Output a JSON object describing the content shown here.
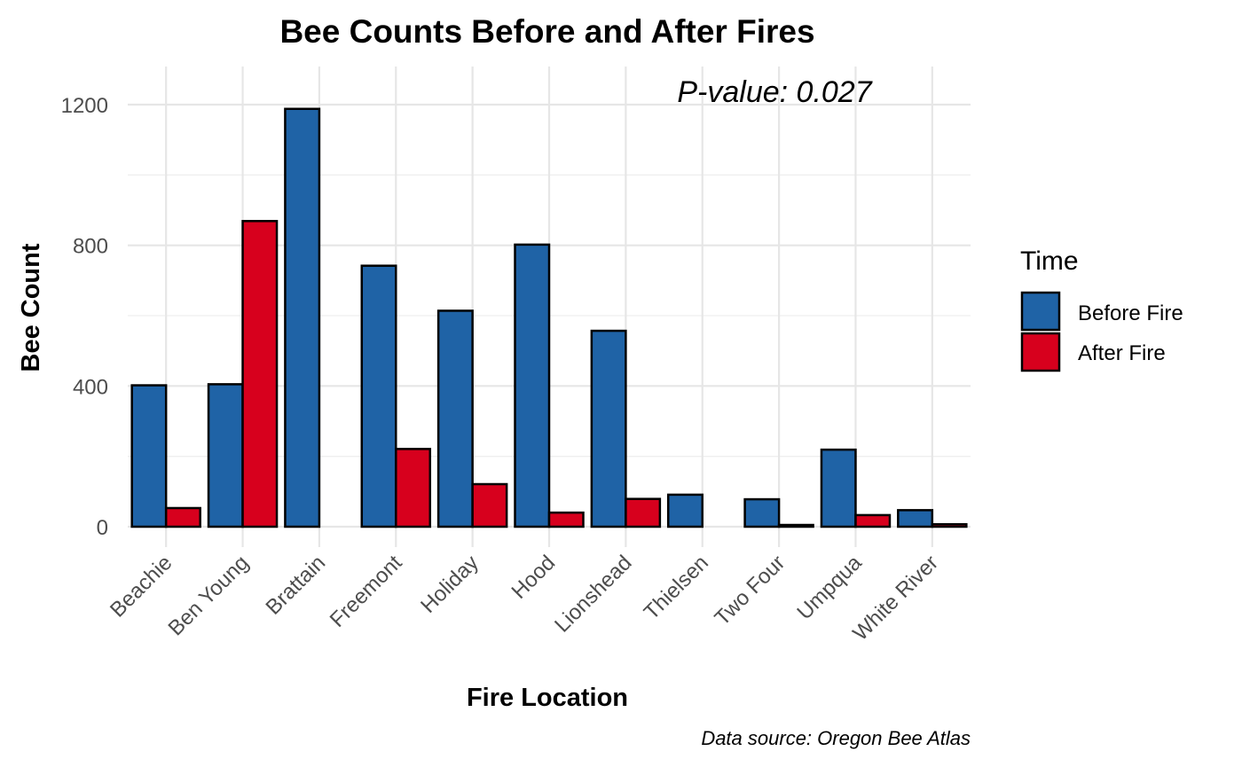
{
  "chart_data": {
    "type": "bar",
    "title": "Bee Counts Before and After Fires",
    "xlabel": "Fire Location",
    "ylabel": "Bee Count",
    "annotation": "P-value: 0.027",
    "caption": "Data source: Oregon Bee Atlas",
    "categories": [
      "Beachie",
      "Ben Young",
      "Brattain",
      "Freemont",
      "Holiday",
      "Hood",
      "Lionshead",
      "Thielsen",
      "Two Four",
      "Umpqua",
      "White River"
    ],
    "series": [
      {
        "name": "Before Fire",
        "color": "#1f63a6",
        "values": [
          402,
          405,
          1188,
          742,
          614,
          802,
          557,
          91,
          78,
          219,
          47
        ]
      },
      {
        "name": "After Fire",
        "color": "#d7001d",
        "values": [
          53,
          869,
          0,
          221,
          121,
          40,
          79,
          0,
          5,
          33,
          7
        ]
      }
    ],
    "ylim": [
      0,
      1300
    ],
    "yticks": [
      "0",
      "400",
      "800",
      "1200"
    ],
    "ytick_values": [
      0,
      400,
      800,
      1200
    ],
    "grid": true,
    "legend": {
      "title": "Time",
      "position": "right"
    }
  }
}
